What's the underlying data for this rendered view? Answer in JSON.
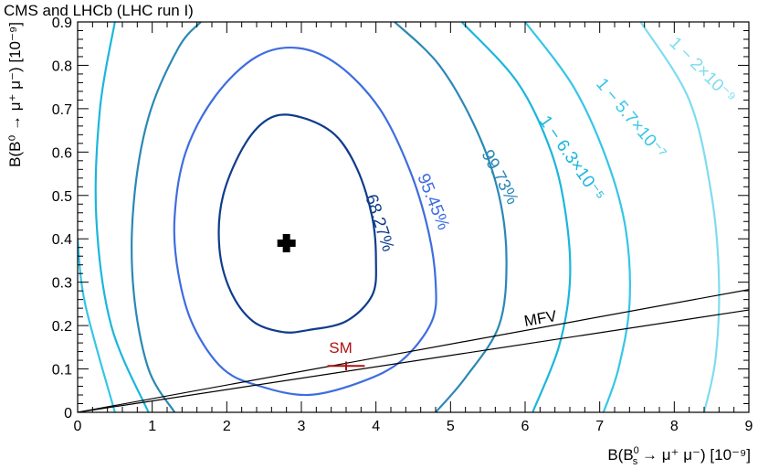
{
  "chart_data": {
    "type": "contour",
    "title": "CMS and LHCb (LHC run I)",
    "xlabel": {
      "prefix": "B(",
      "main": "B",
      "sup": "0",
      "sub": "s",
      "suffix": " → μ⁺ μ⁻) [10⁻⁹]"
    },
    "ylabel": "B(B⁰ → μ⁺ μ⁻) [10⁻⁹]",
    "xlim": [
      0,
      9
    ],
    "ylim": [
      0,
      0.9
    ],
    "xticks": [
      "0",
      "1",
      "2",
      "3",
      "4",
      "5",
      "6",
      "7",
      "8",
      "9"
    ],
    "yticks": [
      "0",
      "0.1",
      "0.2",
      "0.3",
      "0.4",
      "0.5",
      "0.6",
      "0.7",
      "0.8",
      "0.9"
    ],
    "best_fit": {
      "x": 2.8,
      "y": 0.39
    },
    "contours": [
      {
        "label": "68.27%",
        "color": "#0f3c8c",
        "points": [
          [
            3.1,
            0.19
          ],
          [
            3.6,
            0.21
          ],
          [
            3.95,
            0.27
          ],
          [
            4.0,
            0.35
          ],
          [
            3.95,
            0.45
          ],
          [
            3.75,
            0.56
          ],
          [
            3.45,
            0.64
          ],
          [
            3.0,
            0.68
          ],
          [
            2.6,
            0.68
          ],
          [
            2.25,
            0.62
          ],
          [
            1.95,
            0.5
          ],
          [
            1.9,
            0.38
          ],
          [
            2.05,
            0.28
          ],
          [
            2.35,
            0.21
          ],
          [
            2.75,
            0.185
          ]
        ]
      },
      {
        "label": "95.45%",
        "color": "#3e6de0",
        "points": [
          [
            3.1,
            0.04
          ],
          [
            3.8,
            0.07
          ],
          [
            4.35,
            0.12
          ],
          [
            4.75,
            0.21
          ],
          [
            4.8,
            0.3
          ],
          [
            4.7,
            0.42
          ],
          [
            4.45,
            0.56
          ],
          [
            4.05,
            0.7
          ],
          [
            3.5,
            0.8
          ],
          [
            2.95,
            0.84
          ],
          [
            2.4,
            0.82
          ],
          [
            1.85,
            0.73
          ],
          [
            1.45,
            0.6
          ],
          [
            1.3,
            0.45
          ],
          [
            1.35,
            0.32
          ],
          [
            1.55,
            0.2
          ],
          [
            1.95,
            0.1
          ],
          [
            2.45,
            0.06
          ]
        ]
      },
      {
        "label": "99.73%",
        "color": "#2a88b4",
        "points": [
          [
            1.3,
            0.0
          ],
          [
            0.95,
            0.1
          ],
          [
            0.75,
            0.28
          ],
          [
            0.75,
            0.48
          ],
          [
            0.95,
            0.68
          ],
          [
            1.35,
            0.84
          ],
          [
            1.65,
            0.9
          ]
        ],
        "points2": [
          [
            4.25,
            0.9
          ],
          [
            4.85,
            0.8
          ],
          [
            5.35,
            0.65
          ],
          [
            5.65,
            0.5
          ],
          [
            5.75,
            0.35
          ],
          [
            5.65,
            0.2
          ],
          [
            5.2,
            0.08
          ],
          [
            4.8,
            0.0
          ]
        ]
      },
      {
        "label": "1 − 6.3×10⁻⁵",
        "color": "#1ab6dc",
        "points": [
          [
            0.95,
            0.0
          ],
          [
            0.45,
            0.2
          ],
          [
            0.25,
            0.45
          ],
          [
            0.3,
            0.7
          ],
          [
            0.5,
            0.9
          ]
        ],
        "points2": [
          [
            5.15,
            0.9
          ],
          [
            5.9,
            0.76
          ],
          [
            6.35,
            0.6
          ],
          [
            6.55,
            0.45
          ],
          [
            6.6,
            0.3
          ],
          [
            6.45,
            0.15
          ],
          [
            6.1,
            0.0
          ]
        ]
      },
      {
        "label": "1 − 5.7×10⁻⁷",
        "color": "#35c6e6",
        "points": [
          [
            0.5,
            0.0
          ],
          [
            0.1,
            0.25
          ],
          [
            0.0,
            0.4
          ]
        ],
        "points2": [
          [
            6.0,
            0.9
          ],
          [
            6.65,
            0.75
          ],
          [
            7.1,
            0.58
          ],
          [
            7.35,
            0.42
          ],
          [
            7.4,
            0.25
          ],
          [
            7.25,
            0.1
          ],
          [
            7.05,
            0.0
          ]
        ]
      },
      {
        "label": "1 − 2×10⁻⁹",
        "color": "#7fdcef",
        "points": [
          [
            7.55,
            0.9
          ],
          [
            8.2,
            0.72
          ],
          [
            8.5,
            0.5
          ],
          [
            8.6,
            0.3
          ],
          [
            8.55,
            0.12
          ],
          [
            8.4,
            0.0
          ]
        ]
      }
    ],
    "mfv": {
      "label": "MFV",
      "lines": [
        [
          [
            0,
            0
          ],
          [
            9,
            0.283
          ]
        ],
        [
          [
            0,
            0
          ],
          [
            9,
            0.236
          ]
        ]
      ]
    },
    "sm": {
      "label": "SM",
      "x": 3.6,
      "y": 0.107,
      "x_err": 0.25,
      "y_err": 0.01,
      "color": "#b01010"
    }
  }
}
